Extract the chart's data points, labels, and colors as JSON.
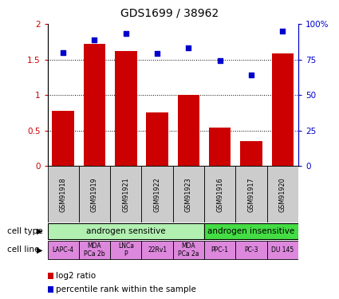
{
  "title": "GDS1699 / 38962",
  "samples": [
    "GSM91918",
    "GSM91919",
    "GSM91921",
    "GSM91922",
    "GSM91923",
    "GSM91916",
    "GSM91917",
    "GSM91920"
  ],
  "log2_ratio": [
    0.78,
    1.72,
    1.62,
    0.75,
    1.0,
    0.54,
    0.35,
    1.58
  ],
  "percentile_rank": [
    80,
    89,
    93,
    79,
    83,
    74,
    64,
    95
  ],
  "bar_color": "#cc0000",
  "dot_color": "#0000cc",
  "ylim_left": [
    0,
    2
  ],
  "ylim_right": [
    0,
    100
  ],
  "yticks_left": [
    0,
    0.5,
    1.0,
    1.5,
    2.0
  ],
  "ytick_labels_left": [
    "0",
    "0.5",
    "1",
    "1.5",
    "2"
  ],
  "yticks_right": [
    0,
    25,
    50,
    75,
    100
  ],
  "ytick_labels_right": [
    "0",
    "25",
    "50",
    "75",
    "100%"
  ],
  "cell_type_labels": [
    "androgen sensitive",
    "androgen insensitive"
  ],
  "cell_type_colors": [
    "#b2f0b2",
    "#44dd44"
  ],
  "cell_line_labels": [
    "LAPC-4",
    "MDA\nPCa 2b",
    "LNCa\nP",
    "22Rv1",
    "MDA\nPCa 2a",
    "PPC-1",
    "PC-3",
    "DU 145"
  ],
  "cell_line_color": "#dd88dd",
  "sample_box_color": "#cccccc",
  "legend_bar_label": "log2 ratio",
  "legend_dot_label": "percentile rank within the sample",
  "cell_type_row_label": "cell type",
  "cell_line_row_label": "cell line"
}
